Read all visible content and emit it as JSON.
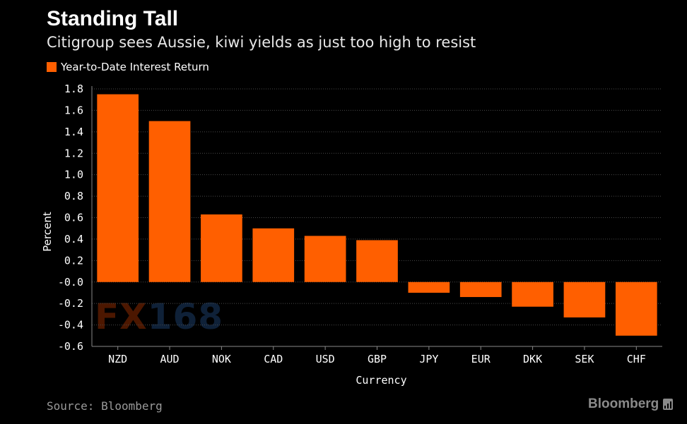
{
  "title": "Standing Tall",
  "subtitle": "Citigroup sees Aussie, kiwi yields as just too high to resist",
  "legend": {
    "label": "Year-to-Date Interest Return",
    "color": "#ff5f00"
  },
  "source": "Source: Bloomberg",
  "brand": {
    "name": "Bloomberg",
    "icon": "bloomberg-terminal-icon"
  },
  "watermark": {
    "part_a": "FX",
    "part_b": "168"
  },
  "chart_data": {
    "type": "bar",
    "title": "Standing Tall",
    "subtitle": "Citigroup sees Aussie, kiwi yields as just too high to resist",
    "xlabel": "Currency",
    "ylabel": "Percent",
    "ylim": [
      -0.6,
      1.8
    ],
    "yticks": [
      1.8,
      1.6,
      1.4,
      1.2,
      1.0,
      0.8,
      0.6,
      0.4,
      0.2,
      0.0,
      -0.2,
      -0.4,
      -0.6
    ],
    "ytick_labels": [
      "1.8",
      "1.6",
      "1.4",
      "1.2",
      "1.0",
      "0.8",
      "0.6",
      "0.4",
      "0.2",
      "-0.0",
      "-0.2",
      "-0.4",
      "-0.6"
    ],
    "grid": true,
    "legend_position": "top-left",
    "categories": [
      "NZD",
      "AUD",
      "NOK",
      "CAD",
      "USD",
      "GBP",
      "JPY",
      "EUR",
      "DKK",
      "SEK",
      "CHF"
    ],
    "series": [
      {
        "name": "Year-to-Date Interest Return",
        "color": "#ff5f00",
        "values": [
          1.75,
          1.5,
          0.63,
          0.5,
          0.43,
          0.39,
          -0.1,
          -0.14,
          -0.23,
          -0.33,
          -0.5
        ]
      }
    ]
  }
}
